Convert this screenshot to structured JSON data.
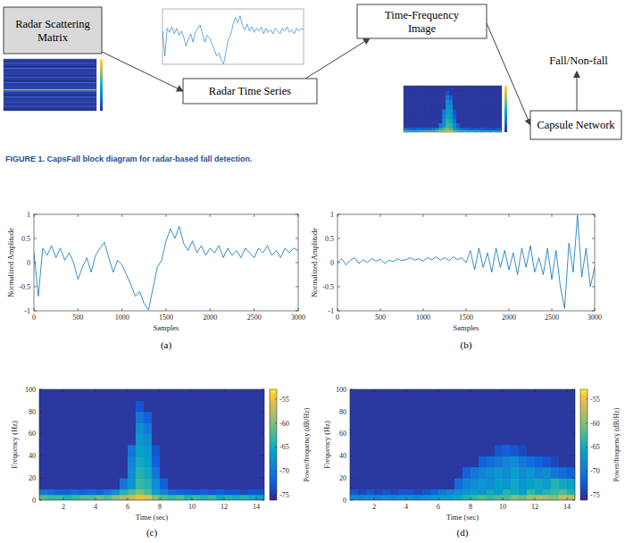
{
  "diagram": {
    "nodes": [
      {
        "label": "Radar Scattering Matrix"
      },
      {
        "label": "Radar Time Series"
      },
      {
        "label": "Time-Frequency Image"
      },
      {
        "label": "Capsule Network"
      },
      {
        "label": "Fall/Non-fall"
      }
    ],
    "edges": [
      {
        "from": 0,
        "to": 1
      },
      {
        "from": 1,
        "to": 2
      },
      {
        "from": 2,
        "to": 3
      },
      {
        "from": 3,
        "to": 4
      }
    ]
  },
  "caption": "FIGURE 1. CapsFall block diagram for radar-based fall detection.",
  "chart_data": [
    {
      "type": "line",
      "label": "(a)",
      "x_label": "Samples",
      "y_label": "Normalized Amplitude",
      "color": "#0072bd",
      "line_style": "solid",
      "grid": false,
      "xlim": [
        0,
        3000
      ],
      "xticks": [
        0,
        500,
        1000,
        1500,
        2000,
        2500,
        3000
      ],
      "ylim": [
        -1,
        1
      ],
      "yticks": [
        -1,
        -0.5,
        0,
        0.5,
        1
      ],
      "x": [
        0,
        50,
        100,
        150,
        200,
        250,
        300,
        350,
        400,
        450,
        500,
        550,
        600,
        650,
        700,
        750,
        800,
        850,
        900,
        950,
        1000,
        1050,
        1100,
        1150,
        1200,
        1250,
        1300,
        1350,
        1400,
        1450,
        1500,
        1550,
        1600,
        1650,
        1700,
        1750,
        1800,
        1850,
        1900,
        1950,
        2000,
        2050,
        2100,
        2150,
        2200,
        2250,
        2300,
        2350,
        2400,
        2450,
        2500,
        2550,
        2600,
        2650,
        2700,
        2750,
        2800,
        2850,
        2900,
        2950,
        3000
      ],
      "values": [
        0.2,
        -0.7,
        0.3,
        0.15,
        0.35,
        0.1,
        0.3,
        0.05,
        0.2,
        0,
        -0.35,
        -0.1,
        0.1,
        -0.2,
        0.15,
        0.3,
        0.42,
        0.1,
        -0.2,
        0.05,
        -0.05,
        -0.25,
        -0.45,
        -0.7,
        -0.6,
        -0.85,
        -0.98,
        -0.55,
        -0.1,
        0.05,
        0.45,
        0.7,
        0.5,
        0.75,
        0.4,
        0.25,
        0.45,
        0.2,
        0.35,
        0.15,
        0.3,
        0.2,
        0.35,
        0.1,
        0.3,
        0.15,
        0.25,
        0.1,
        0.3,
        0.2,
        0.1,
        0.3,
        0.2,
        0.35,
        0.15,
        0.25,
        0.1,
        0.3,
        0.2,
        0.3,
        0.25
      ]
    },
    {
      "type": "line",
      "label": "(b)",
      "x_label": "Samples",
      "y_label": "Normalized Amplitude",
      "color": "#0072bd",
      "line_style": "solid",
      "grid": false,
      "xlim": [
        0,
        3000
      ],
      "xticks": [
        0,
        500,
        1000,
        1500,
        2000,
        2500,
        3000
      ],
      "ylim": [
        -1,
        1
      ],
      "yticks": [
        -1,
        -0.5,
        0,
        0.5,
        1
      ],
      "x": [
        0,
        50,
        100,
        150,
        200,
        250,
        300,
        350,
        400,
        450,
        500,
        550,
        600,
        650,
        700,
        750,
        800,
        850,
        900,
        950,
        1000,
        1050,
        1100,
        1150,
        1200,
        1250,
        1300,
        1350,
        1400,
        1450,
        1500,
        1550,
        1600,
        1650,
        1700,
        1750,
        1800,
        1850,
        1900,
        1950,
        2000,
        2050,
        2100,
        2150,
        2200,
        2250,
        2300,
        2350,
        2400,
        2450,
        2500,
        2550,
        2600,
        2650,
        2700,
        2750,
        2800,
        2850,
        2900,
        2950,
        3000
      ],
      "values": [
        0,
        0.08,
        -0.05,
        0.05,
        0.1,
        -0.02,
        0.06,
        0,
        0.08,
        0.03,
        0.07,
        -0.02,
        0.05,
        0.02,
        0.08,
        0.04,
        0.06,
        0.1,
        0.05,
        0.08,
        0.03,
        0.1,
        0.06,
        0.12,
        0.05,
        0.1,
        0.04,
        0.12,
        0.06,
        0.1,
        0,
        0.25,
        -0.15,
        0.3,
        -0.1,
        0.2,
        -0.2,
        0.3,
        -0.1,
        0.25,
        -0.15,
        0.2,
        -0.25,
        0.3,
        -0.1,
        0.35,
        -0.2,
        0.1,
        -0.25,
        0.3,
        -0.35,
        0.25,
        -0.5,
        -0.95,
        0.4,
        -0.2,
        0.98,
        -0.3,
        0.3,
        -0.5,
        -0.1
      ]
    },
    {
      "type": "heatmap",
      "label": "(c)",
      "x_label": "Time (sec)",
      "y_label": "Frequency (Hz)",
      "color_label": "Power/frequency (dB/Hz)",
      "grid": false,
      "xlim": [
        0.5,
        14.5
      ],
      "xticks": [
        2,
        4,
        6,
        8,
        10,
        12,
        14
      ],
      "ylim": [
        0,
        100
      ],
      "yticks": [
        0,
        20,
        40,
        60,
        80,
        100
      ],
      "clim": [
        -76,
        -53
      ],
      "cticks": [
        -75,
        -70,
        -65,
        -60,
        -55
      ],
      "time_edges": [
        0.5,
        1,
        1.5,
        2,
        2.5,
        3,
        3.5,
        4,
        4.5,
        5,
        5.5,
        6,
        6.5,
        7,
        7.5,
        8,
        8.5,
        9,
        9.5,
        10,
        10.5,
        11,
        11.5,
        12,
        12.5,
        13,
        13.5,
        14,
        14.5
      ],
      "freq_edges": [
        0,
        5,
        10,
        20,
        30,
        40,
        50,
        60,
        70,
        80,
        90,
        100
      ],
      "power": [
        [
          -62,
          -63,
          -63,
          -64,
          -63,
          -62,
          -62,
          -61,
          -62,
          -60,
          -58,
          -57,
          -55,
          -56,
          -60,
          -62,
          -63,
          -62,
          -64,
          -63,
          -64,
          -63,
          -65,
          -64,
          -65,
          -64,
          -65,
          -66
        ],
        [
          -70,
          -71,
          -72,
          -72,
          -71,
          -72,
          -71,
          -72,
          -70,
          -68,
          -64,
          -62,
          -60,
          -62,
          -66,
          -69,
          -71,
          -72,
          -72,
          -73,
          -72,
          -73,
          -72,
          -73,
          -73,
          -74,
          -73,
          -73
        ],
        [
          -75,
          -75,
          -75,
          -75,
          -75,
          -75,
          -75,
          -75,
          -75,
          -75,
          -70,
          -67,
          -63,
          -64,
          -68,
          -72,
          -75,
          -75,
          -75,
          -75,
          -75,
          -75,
          -75,
          -75,
          -75,
          -75,
          -75,
          -75
        ],
        [
          -75,
          -75,
          -75,
          -75,
          -75,
          -75,
          -75,
          -75,
          -75,
          -75,
          -75,
          -68,
          -64,
          -65,
          -70,
          -75,
          -75,
          -75,
          -75,
          -75,
          -75,
          -75,
          -75,
          -75,
          -75,
          -75,
          -75,
          -75
        ],
        [
          -75,
          -75,
          -75,
          -75,
          -75,
          -75,
          -75,
          -75,
          -75,
          -75,
          -75,
          -69,
          -65,
          -66,
          -72,
          -75,
          -75,
          -75,
          -75,
          -75,
          -75,
          -75,
          -75,
          -75,
          -75,
          -75,
          -75,
          -75
        ],
        [
          -75,
          -75,
          -75,
          -75,
          -75,
          -75,
          -75,
          -75,
          -75,
          -75,
          -75,
          -70,
          -66,
          -67,
          -73,
          -75,
          -75,
          -75,
          -75,
          -75,
          -75,
          -75,
          -75,
          -75,
          -75,
          -75,
          -75,
          -75
        ],
        [
          -75,
          -75,
          -75,
          -75,
          -75,
          -75,
          -75,
          -75,
          -75,
          -75,
          -75,
          -75,
          -67,
          -68,
          -75,
          -75,
          -75,
          -75,
          -75,
          -75,
          -75,
          -75,
          -75,
          -75,
          -75,
          -75,
          -75,
          -75
        ],
        [
          -75,
          -75,
          -75,
          -75,
          -75,
          -75,
          -75,
          -75,
          -75,
          -75,
          -75,
          -75,
          -68,
          -70,
          -75,
          -75,
          -75,
          -75,
          -75,
          -75,
          -75,
          -75,
          -75,
          -75,
          -75,
          -75,
          -75,
          -75
        ],
        [
          -75,
          -75,
          -75,
          -75,
          -75,
          -75,
          -75,
          -75,
          -75,
          -75,
          -75,
          -75,
          -70,
          -72,
          -75,
          -75,
          -75,
          -75,
          -75,
          -75,
          -75,
          -75,
          -75,
          -75,
          -75,
          -75,
          -75,
          -75
        ],
        [
          -75,
          -75,
          -75,
          -75,
          -75,
          -75,
          -75,
          -75,
          -75,
          -75,
          -75,
          -75,
          -73,
          -75,
          -75,
          -75,
          -75,
          -75,
          -75,
          -75,
          -75,
          -75,
          -75,
          -75,
          -75,
          -75,
          -75,
          -75
        ],
        [
          -75,
          -75,
          -75,
          -75,
          -75,
          -75,
          -75,
          -75,
          -75,
          -75,
          -75,
          -75,
          -75,
          -75,
          -75,
          -75,
          -75,
          -75,
          -75,
          -75,
          -75,
          -75,
          -75,
          -75,
          -75,
          -75,
          -75,
          -75
        ]
      ]
    },
    {
      "type": "heatmap",
      "label": "(d)",
      "x_label": "Time (sec)",
      "y_label": "Frequency (Hz)",
      "color_label": "Power/frequency (dB/Hz)",
      "grid": false,
      "xlim": [
        0.5,
        14.5
      ],
      "xticks": [
        2,
        4,
        6,
        8,
        10,
        12,
        14
      ],
      "ylim": [
        0,
        100
      ],
      "yticks": [
        0,
        20,
        40,
        60,
        80,
        100
      ],
      "clim": [
        -76,
        -53
      ],
      "cticks": [
        -75,
        -70,
        -65,
        -60,
        -55
      ],
      "time_edges": [
        0.5,
        1,
        1.5,
        2,
        2.5,
        3,
        3.5,
        4,
        4.5,
        5,
        5.5,
        6,
        6.5,
        7,
        7.5,
        8,
        8.5,
        9,
        9.5,
        10,
        10.5,
        11,
        11.5,
        12,
        12.5,
        13,
        13.5,
        14,
        14.5
      ],
      "freq_edges": [
        0,
        5,
        10,
        20,
        30,
        40,
        50,
        60,
        70,
        80,
        90,
        100
      ],
      "power": [
        [
          -68,
          -69,
          -68,
          -69,
          -68,
          -69,
          -68,
          -68,
          -69,
          -68,
          -67,
          -66,
          -66,
          -65,
          -64,
          -63,
          -62,
          -63,
          -62,
          -62,
          -60,
          -61,
          -59,
          -58,
          -59,
          -60,
          -57,
          -58
        ],
        [
          -73,
          -74,
          -73,
          -74,
          -73,
          -74,
          -73,
          -73,
          -74,
          -73,
          -72,
          -70,
          -69,
          -68,
          -67,
          -66,
          -67,
          -65,
          -66,
          -64,
          -65,
          -66,
          -63,
          -65,
          -64,
          -63,
          -62,
          -64
        ],
        [
          -75,
          -75,
          -75,
          -75,
          -75,
          -75,
          -75,
          -75,
          -75,
          -75,
          -75,
          -75,
          -75,
          -71,
          -69,
          -68,
          -67,
          -68,
          -66,
          -67,
          -65,
          -67,
          -66,
          -65,
          -66,
          -64,
          -65,
          -66
        ],
        [
          -75,
          -75,
          -75,
          -75,
          -75,
          -75,
          -75,
          -75,
          -75,
          -75,
          -75,
          -75,
          -75,
          -75,
          -72,
          -70,
          -69,
          -68,
          -67,
          -68,
          -66,
          -68,
          -67,
          -69,
          -68,
          -70,
          -71,
          -72
        ],
        [
          -75,
          -75,
          -75,
          -75,
          -75,
          -75,
          -75,
          -75,
          -75,
          -75,
          -75,
          -75,
          -75,
          -75,
          -75,
          -75,
          -72,
          -71,
          -70,
          -69,
          -68,
          -70,
          -71,
          -72,
          -73,
          -74,
          -75,
          -75
        ],
        [
          -75,
          -75,
          -75,
          -75,
          -75,
          -75,
          -75,
          -75,
          -75,
          -75,
          -75,
          -75,
          -75,
          -75,
          -75,
          -75,
          -75,
          -75,
          -73,
          -72,
          -73,
          -74,
          -75,
          -75,
          -75,
          -75,
          -75,
          -75
        ],
        [
          -75,
          -75,
          -75,
          -75,
          -75,
          -75,
          -75,
          -75,
          -75,
          -75,
          -75,
          -75,
          -75,
          -75,
          -75,
          -75,
          -75,
          -75,
          -75,
          -75,
          -75,
          -75,
          -75,
          -75,
          -75,
          -75,
          -75,
          -75
        ],
        [
          -75,
          -75,
          -75,
          -75,
          -75,
          -75,
          -75,
          -75,
          -75,
          -75,
          -75,
          -75,
          -75,
          -75,
          -75,
          -75,
          -75,
          -75,
          -75,
          -75,
          -75,
          -75,
          -75,
          -75,
          -75,
          -75,
          -75,
          -75
        ],
        [
          -75,
          -75,
          -75,
          -75,
          -75,
          -75,
          -75,
          -75,
          -75,
          -75,
          -75,
          -75,
          -75,
          -75,
          -75,
          -75,
          -75,
          -75,
          -75,
          -75,
          -75,
          -75,
          -75,
          -75,
          -75,
          -75,
          -75,
          -75
        ],
        [
          -75,
          -75,
          -75,
          -75,
          -75,
          -75,
          -75,
          -75,
          -75,
          -75,
          -75,
          -75,
          -75,
          -75,
          -75,
          -75,
          -75,
          -75,
          -75,
          -75,
          -75,
          -75,
          -75,
          -75,
          -75,
          -75,
          -75,
          -75
        ],
        [
          -75,
          -75,
          -75,
          -75,
          -75,
          -75,
          -75,
          -75,
          -75,
          -75,
          -75,
          -75,
          -75,
          -75,
          -75,
          -75,
          -75,
          -75,
          -75,
          -75,
          -75,
          -75,
          -75,
          -75,
          -75,
          -75,
          -75,
          -75
        ]
      ]
    }
  ]
}
